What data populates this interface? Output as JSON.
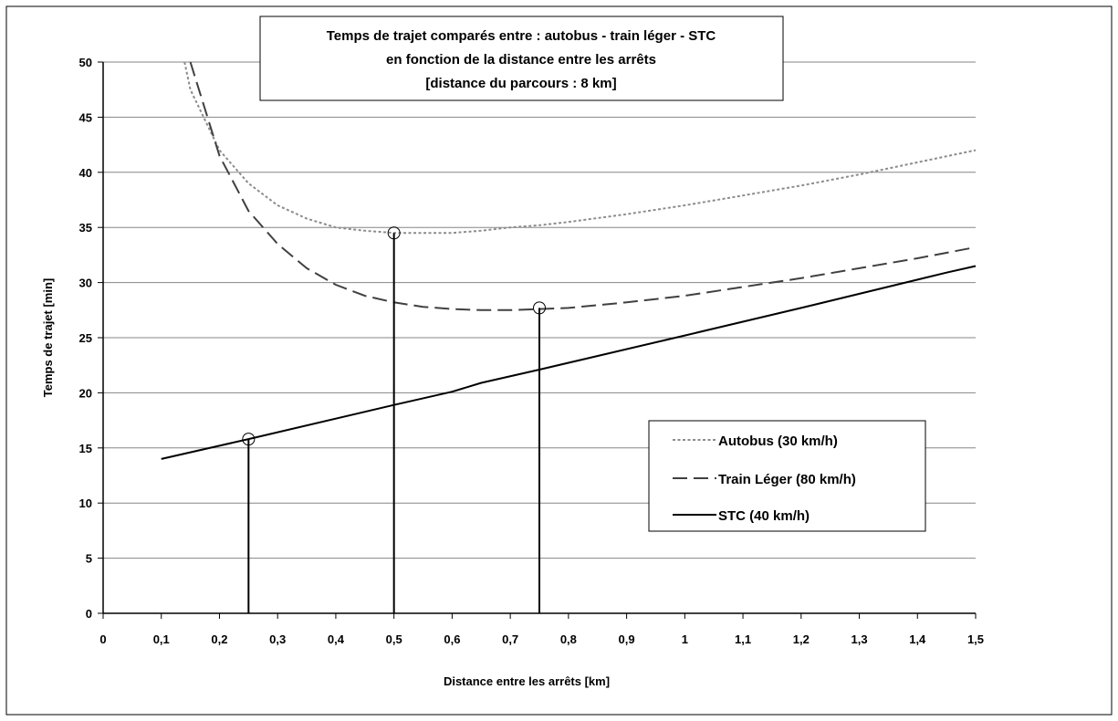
{
  "chart_data": {
    "type": "line",
    "title_lines": [
      "Temps de trajet comparés entre : autobus - train léger - STC",
      "en fonction de la distance entre les arrêts",
      "[distance du parcours : 8 km]"
    ],
    "xlabel": "Distance entre les arrêts [km]",
    "ylabel": "Temps de trajet [min]",
    "xlim": [
      0,
      1.5
    ],
    "ylim": [
      0,
      50
    ],
    "x_ticks": [
      "0",
      "0,1",
      "0,2",
      "0,3",
      "0,4",
      "0,5",
      "0,6",
      "0,7",
      "0,8",
      "0,9",
      "1",
      "1,1",
      "1,2",
      "1,3",
      "1,4",
      "1,5"
    ],
    "y_ticks": [
      "0",
      "5",
      "10",
      "15",
      "20",
      "25",
      "30",
      "35",
      "40",
      "45",
      "50"
    ],
    "grid": "horizontal",
    "legend_position": "bottom-right",
    "series": [
      {
        "name": "Autobus (30 km/h)",
        "color": "#8c8c8c",
        "style": "dotted",
        "x": [
          0.14,
          0.15,
          0.2,
          0.25,
          0.3,
          0.35,
          0.4,
          0.45,
          0.5,
          0.55,
          0.6,
          0.65,
          0.7,
          0.75,
          0.8,
          0.9,
          1.0,
          1.1,
          1.2,
          1.3,
          1.4,
          1.5
        ],
        "y": [
          50,
          47.5,
          42,
          39,
          37,
          35.8,
          35,
          34.7,
          34.5,
          34.5,
          34.5,
          34.7,
          35,
          35.2,
          35.5,
          36.2,
          37,
          37.9,
          38.8,
          39.8,
          40.9,
          42
        ]
      },
      {
        "name": "Train Léger (80 km/h)",
        "color": "#404040",
        "style": "dashed",
        "x": [
          0.15,
          0.2,
          0.25,
          0.3,
          0.35,
          0.4,
          0.45,
          0.5,
          0.55,
          0.6,
          0.65,
          0.7,
          0.75,
          0.8,
          0.9,
          1.0,
          1.1,
          1.2,
          1.3,
          1.4,
          1.5
        ],
        "y": [
          50,
          41.5,
          36.5,
          33.5,
          31.3,
          29.8,
          28.8,
          28.2,
          27.8,
          27.6,
          27.5,
          27.5,
          27.6,
          27.7,
          28.2,
          28.8,
          29.6,
          30.4,
          31.3,
          32.2,
          33.2
        ]
      },
      {
        "name": "STC (40 km/h)",
        "color": "#000000",
        "style": "solid",
        "x": [
          0.1,
          0.25,
          0.5,
          0.6,
          0.65,
          0.75,
          1.0,
          1.2,
          1.45,
          1.5
        ],
        "y": [
          14,
          15.8,
          18.9,
          20.1,
          20.9,
          22.1,
          25.2,
          27.7,
          30.9,
          31.5
        ]
      }
    ],
    "markers": [
      {
        "x": 0.25,
        "y": 15.8
      },
      {
        "x": 0.5,
        "y": 34.5
      },
      {
        "x": 0.75,
        "y": 27.7
      }
    ]
  }
}
